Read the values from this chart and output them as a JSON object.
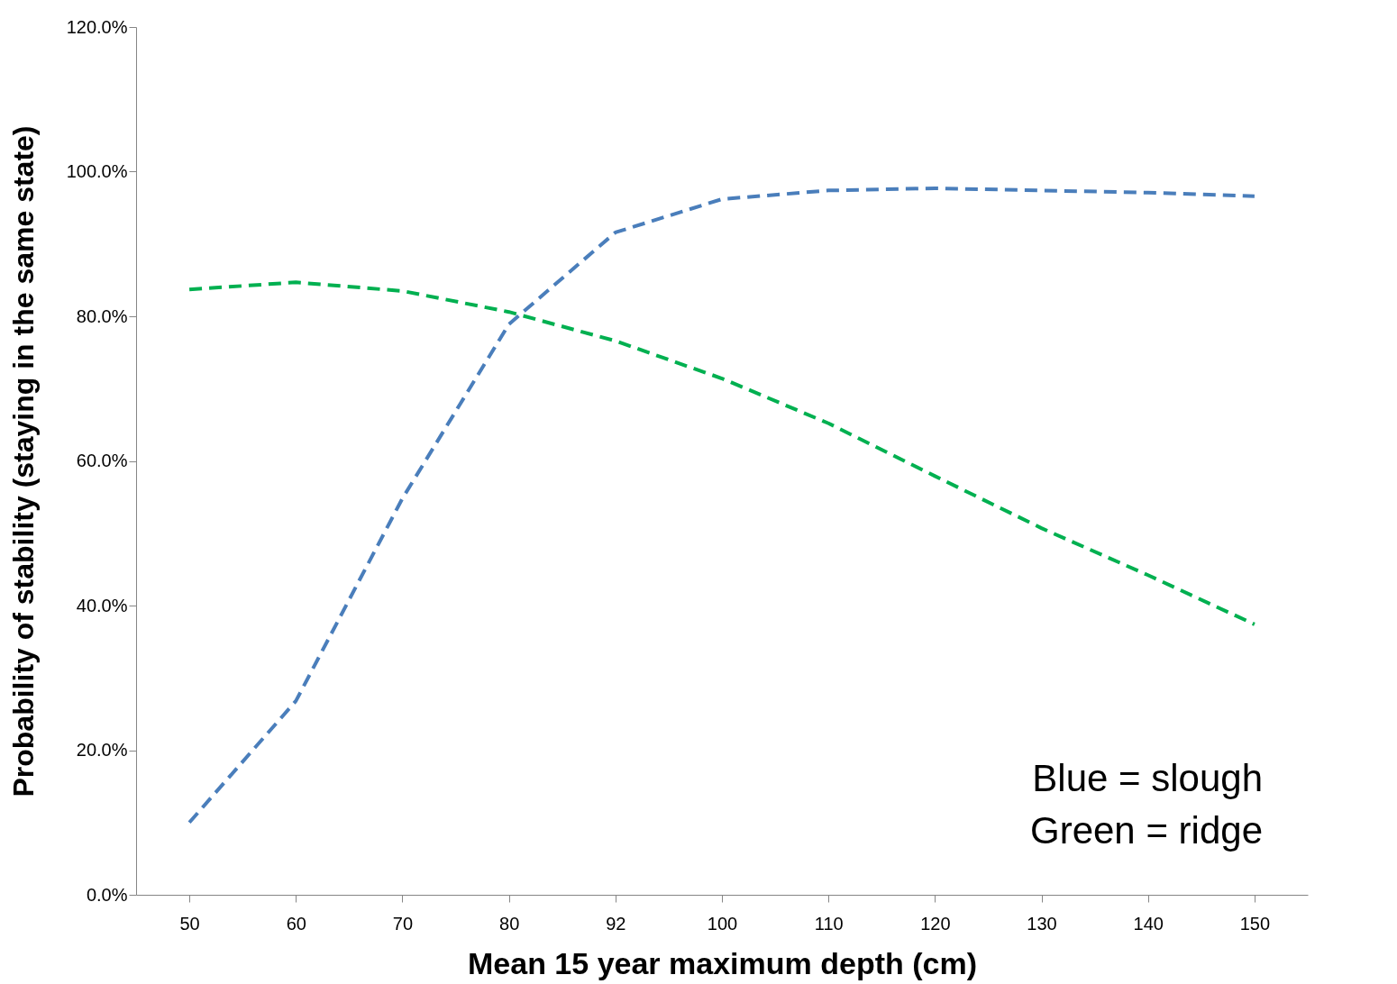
{
  "chart_data": {
    "type": "line",
    "xlabel": "Mean 15 year maximum depth (cm)",
    "ylabel": "Probability of stability (staying in the same state)",
    "categories": [
      "50",
      "60",
      "70",
      "80",
      "92",
      "100",
      "110",
      "120",
      "130",
      "140",
      "150"
    ],
    "series": [
      {
        "color": "#4a7ebb",
        "values": [
          10.0,
          26.8,
          54.8,
          78.9,
          91.6,
          96.2,
          97.4,
          97.7,
          97.4,
          97.1,
          96.6
        ]
      },
      {
        "color": "#00b050",
        "values": [
          83.7,
          84.7,
          83.5,
          80.6,
          76.6,
          71.4,
          65.2,
          57.9,
          50.7,
          44.2,
          37.4
        ]
      }
    ],
    "ylim": [
      0,
      120
    ],
    "yticks": [
      {
        "value": 0,
        "label": "0.0%"
      },
      {
        "value": 20,
        "label": "20.0%"
      },
      {
        "value": 40,
        "label": "40.0%"
      },
      {
        "value": 60,
        "label": "60.0%"
      },
      {
        "value": 80,
        "label": "80.0%"
      },
      {
        "value": 100,
        "label": "100.0%"
      },
      {
        "value": 120,
        "label": "120.0%"
      }
    ],
    "annotations": [
      "Blue = slough",
      "Green = ridge"
    ],
    "grid": false,
    "legend": false,
    "marker": "none",
    "line_style": "dashed"
  }
}
